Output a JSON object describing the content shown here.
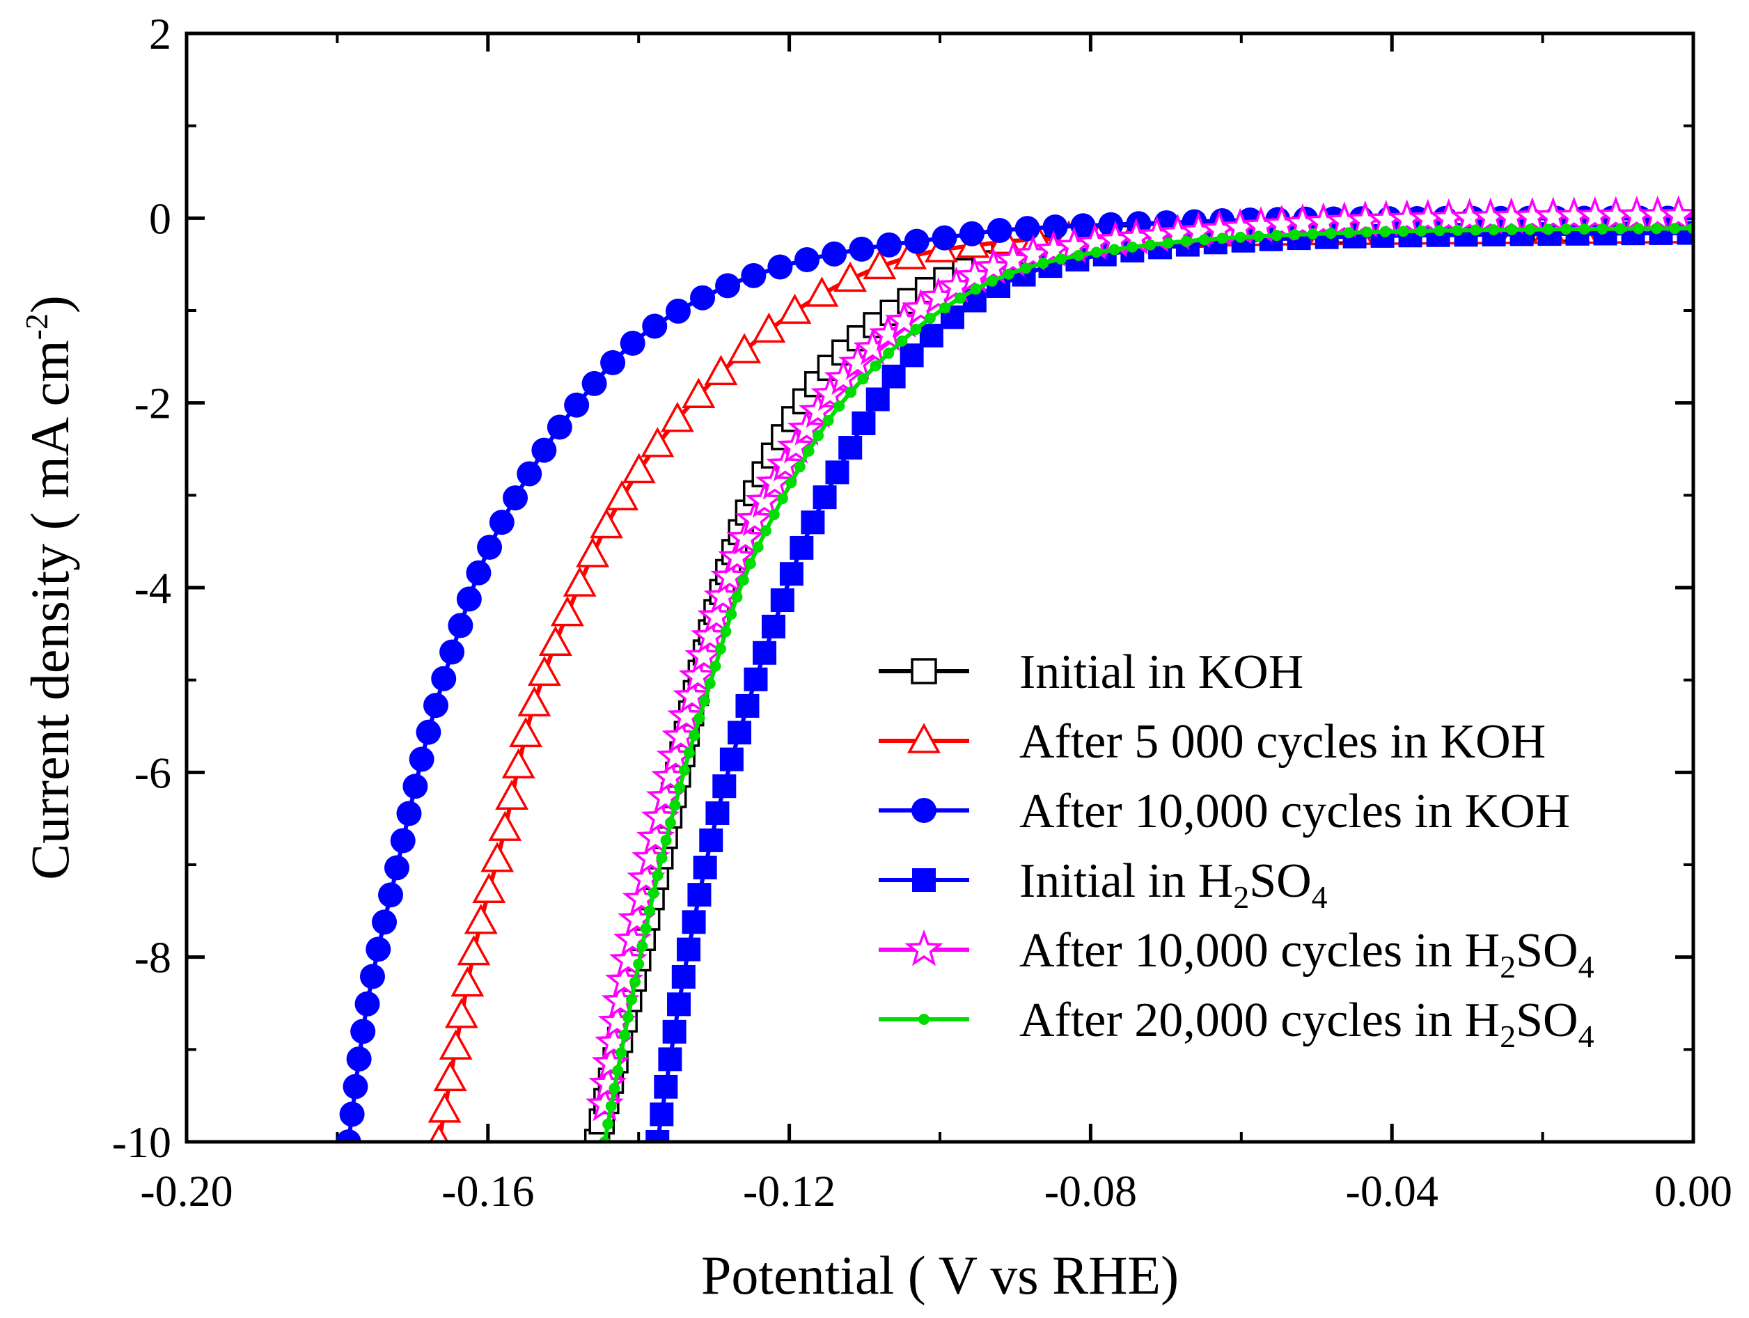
{
  "chart_data": {
    "type": "line",
    "title": "",
    "xlabel": "Potential ( V vs RHE)",
    "ylabel_main": "Current density ( mA cm",
    "ylabel_sup": "-2",
    "ylabel_close": ")",
    "xlim": [
      -0.2,
      0.0
    ],
    "ylim": [
      -10,
      2
    ],
    "xticks": [
      -0.2,
      -0.16,
      -0.12,
      -0.08,
      -0.04,
      0.0
    ],
    "xtick_labels": [
      "-0.20",
      "-0.16",
      "-0.12",
      "-0.08",
      "-0.04",
      "0.00"
    ],
    "yticks": [
      2,
      0,
      -2,
      -4,
      -6,
      -8,
      -10
    ],
    "ytick_labels": [
      "2",
      "0",
      "-2",
      "-4",
      "-6",
      "-8",
      "-10"
    ],
    "legend_position": "lower-right",
    "series": [
      {
        "name": "Initial in KOH",
        "color": "#000000",
        "marker": "square-open",
        "legend_parts": [
          {
            "text": "Initial in KOH"
          }
        ],
        "anchors": [
          [
            -0.1455,
            -10
          ],
          [
            -0.14,
            -8.0
          ],
          [
            -0.136,
            -6.5
          ],
          [
            -0.132,
            -5.0
          ],
          [
            -0.128,
            -3.8
          ],
          [
            -0.124,
            -2.9
          ],
          [
            -0.118,
            -2.0
          ],
          [
            -0.112,
            -1.4
          ],
          [
            -0.104,
            -0.9
          ],
          [
            -0.096,
            -0.55
          ],
          [
            -0.088,
            -0.35
          ],
          [
            -0.076,
            -0.22
          ],
          [
            -0.06,
            -0.16
          ],
          [
            -0.04,
            -0.13
          ],
          [
            0.0,
            -0.11
          ]
        ]
      },
      {
        "name": "After 5 000 cycles in KOH",
        "color": "#ff0000",
        "marker": "triangle-open",
        "legend_parts": [
          {
            "text": "After 5 000 cycles in KOH"
          }
        ],
        "anchors": [
          [
            -0.1665,
            -10
          ],
          [
            -0.162,
            -8.0
          ],
          [
            -0.158,
            -6.7
          ],
          [
            -0.154,
            -5.3
          ],
          [
            -0.148,
            -4.0
          ],
          [
            -0.142,
            -3.0
          ],
          [
            -0.134,
            -2.1
          ],
          [
            -0.124,
            -1.3
          ],
          [
            -0.114,
            -0.75
          ],
          [
            -0.104,
            -0.42
          ],
          [
            -0.094,
            -0.28
          ],
          [
            -0.084,
            -0.22
          ],
          [
            -0.06,
            -0.17
          ],
          [
            -0.03,
            -0.15
          ],
          [
            0.0,
            -0.14
          ]
        ]
      },
      {
        "name": "After 10,000 cycles in KOH",
        "color": "#0000ff",
        "marker": "circle-filled",
        "legend_parts": [
          {
            "text": "After 10,000 cycles in KOH"
          }
        ],
        "anchors": [
          [
            -0.1785,
            -10
          ],
          [
            -0.176,
            -8.5
          ],
          [
            -0.172,
            -7.0
          ],
          [
            -0.168,
            -5.6
          ],
          [
            -0.164,
            -4.5
          ],
          [
            -0.16,
            -3.6
          ],
          [
            -0.154,
            -2.7
          ],
          [
            -0.148,
            -2.0
          ],
          [
            -0.14,
            -1.3
          ],
          [
            -0.13,
            -0.8
          ],
          [
            -0.12,
            -0.5
          ],
          [
            -0.11,
            -0.33
          ],
          [
            -0.1,
            -0.22
          ],
          [
            -0.09,
            -0.12
          ],
          [
            -0.07,
            -0.05
          ],
          [
            -0.05,
            -0.01
          ],
          [
            0.0,
            0.0
          ]
        ]
      },
      {
        "name": "Initial in H2SO4",
        "color": "#0000ff",
        "marker": "square-filled",
        "legend_parts": [
          {
            "text": "Initial in H"
          },
          {
            "text": "2",
            "sub": true
          },
          {
            "text": "SO"
          },
          {
            "text": "4",
            "sub": true
          }
        ],
        "anchors": [
          [
            -0.1375,
            -10
          ],
          [
            -0.134,
            -8.2
          ],
          [
            -0.13,
            -6.6
          ],
          [
            -0.126,
            -5.4
          ],
          [
            -0.122,
            -4.4
          ],
          [
            -0.118,
            -3.5
          ],
          [
            -0.112,
            -2.5
          ],
          [
            -0.106,
            -1.7
          ],
          [
            -0.098,
            -1.05
          ],
          [
            -0.09,
            -0.65
          ],
          [
            -0.08,
            -0.42
          ],
          [
            -0.066,
            -0.28
          ],
          [
            -0.05,
            -0.21
          ],
          [
            -0.03,
            -0.18
          ],
          [
            0.0,
            -0.16
          ]
        ]
      },
      {
        "name": "After 10,000 cycles in H2SO4",
        "color": "#ff00ff",
        "marker": "star-open",
        "legend_parts": [
          {
            "text": "After 10,000 cycles in H"
          },
          {
            "text": "2",
            "sub": true
          },
          {
            "text": "SO"
          },
          {
            "text": "4",
            "sub": true
          }
        ],
        "anchors": [
          [
            -0.1445,
            -9.6
          ],
          [
            -0.142,
            -8.3
          ],
          [
            -0.138,
            -6.8
          ],
          [
            -0.134,
            -5.5
          ],
          [
            -0.13,
            -4.4
          ],
          [
            -0.126,
            -3.5
          ],
          [
            -0.12,
            -2.6
          ],
          [
            -0.114,
            -1.85
          ],
          [
            -0.106,
            -1.2
          ],
          [
            -0.098,
            -0.75
          ],
          [
            -0.09,
            -0.45
          ],
          [
            -0.08,
            -0.28
          ],
          [
            -0.066,
            -0.15
          ],
          [
            -0.05,
            -0.05
          ],
          [
            -0.03,
            0.0
          ],
          [
            0.0,
            0.03
          ]
        ]
      },
      {
        "name": "After 20,000 cycles in H2SO4",
        "color": "#00dd00",
        "marker": "dot-filled",
        "legend_parts": [
          {
            "text": "After 20,000 cycles in H"
          },
          {
            "text": "2",
            "sub": true
          },
          {
            "text": "SO"
          },
          {
            "text": "4",
            "sub": true
          }
        ],
        "anchors": [
          [
            -0.1445,
            -10
          ],
          [
            -0.142,
            -8.9
          ],
          [
            -0.138,
            -7.3
          ],
          [
            -0.134,
            -6.0
          ],
          [
            -0.13,
            -4.9
          ],
          [
            -0.126,
            -3.9
          ],
          [
            -0.12,
            -2.9
          ],
          [
            -0.114,
            -2.1
          ],
          [
            -0.106,
            -1.4
          ],
          [
            -0.098,
            -0.9
          ],
          [
            -0.09,
            -0.58
          ],
          [
            -0.08,
            -0.38
          ],
          [
            -0.066,
            -0.24
          ],
          [
            -0.05,
            -0.17
          ],
          [
            -0.03,
            -0.13
          ],
          [
            0.0,
            -0.11
          ]
        ]
      }
    ]
  }
}
